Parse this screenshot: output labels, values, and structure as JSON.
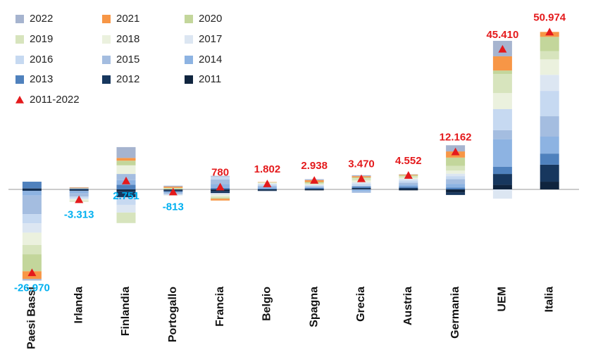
{
  "chart_data": {
    "type": "stacked-bar",
    "categories": [
      "Paesi Bassi",
      "Irlanda",
      "Finlandia",
      "Portogallo",
      "Francia",
      "Belgio",
      "Spagna",
      "Grecia",
      "Austria",
      "Germania",
      "UEM",
      "Italia"
    ],
    "series": [
      {
        "name": "2011",
        "color": "#0f243e",
        "values": [
          300,
          -300,
          -500,
          -300,
          -500,
          -300,
          -300,
          200,
          -300,
          -1000,
          1500,
          2500
        ]
      },
      {
        "name": "2012",
        "color": "#17375e",
        "values": [
          -500,
          -200,
          -2000,
          -300,
          -700,
          -200,
          200,
          300,
          500,
          -800,
          3500,
          5500
        ]
      },
      {
        "name": "2013",
        "color": "#4f81bd",
        "values": [
          2200,
          300,
          1500,
          -200,
          500,
          300,
          300,
          500,
          400,
          600,
          2300,
          3600
        ]
      },
      {
        "name": "2014",
        "color": "#8db3e2",
        "values": [
          -1500,
          -800,
          1500,
          -200,
          1200,
          400,
          200,
          -600,
          600,
          1200,
          8900,
          5500
        ]
      },
      {
        "name": "2015",
        "color": "#a4bde0",
        "values": [
          -6000,
          -1000,
          2000,
          -500,
          1500,
          500,
          300,
          -500,
          700,
          1500,
          3000,
          6600
        ]
      },
      {
        "name": "2016",
        "color": "#c6d9f1",
        "values": [
          -3000,
          -600,
          -2500,
          -200,
          1000,
          400,
          300,
          800,
          700,
          1000,
          6800,
          8200
        ]
      },
      {
        "name": "2017",
        "color": "#dce6f2",
        "values": [
          -3000,
          -300,
          -2500,
          -200,
          -500,
          300,
          200,
          500,
          500,
          800,
          -3000,
          5200
        ]
      },
      {
        "name": "2018",
        "color": "#ebf1de",
        "values": [
          -4000,
          -500,
          2800,
          -100,
          -600,
          200,
          200,
          600,
          400,
          1000,
          5200,
          5000
        ]
      },
      {
        "name": "2019",
        "color": "#d7e4bd",
        "values": [
          -3000,
          -300,
          -3400,
          200,
          -400,
          100,
          300,
          700,
          500,
          1500,
          6200,
          2700
        ]
      },
      {
        "name": "2020",
        "color": "#c3d69b",
        "values": [
          -5500,
          100,
          1500,
          300,
          -300,
          100,
          400,
          300,
          300,
          2700,
          1100,
          4600
        ]
      },
      {
        "name": "2021",
        "color": "#f79646",
        "values": [
          -2500,
          200,
          900,
          400,
          -600,
          100,
          600,
          400,
          200,
          2000,
          4600,
          1600
        ]
      },
      {
        "name": "2022",
        "color": "#a6b4cf",
        "values": [
          -500,
          100,
          3500,
          300,
          200,
          -100,
          300,
          300,
          100,
          2000,
          5000,
          0
        ]
      }
    ],
    "totals": {
      "name": "2011-2022",
      "color": "#e41a1c",
      "values": [
        -26970,
        -3313,
        2751,
        -813,
        780,
        1802,
        2938,
        3470,
        4552,
        12162,
        45410,
        50974
      ],
      "value_labels": [
        "-26.970",
        "-3.313",
        "2.751",
        "-813",
        "780",
        "1.802",
        "2.938",
        "3.470",
        "4.552",
        "12.162",
        "45.410",
        "50.974"
      ],
      "value_label_colors": [
        "#00b0f0",
        "#00b0f0",
        "#00b0f0",
        "#00b0f0",
        "#e41a1c",
        "#e41a1c",
        "#e41a1c",
        "#e41a1c",
        "#e41a1c",
        "#e41a1c",
        "#e41a1c",
        "#e41a1c"
      ]
    }
  }
}
